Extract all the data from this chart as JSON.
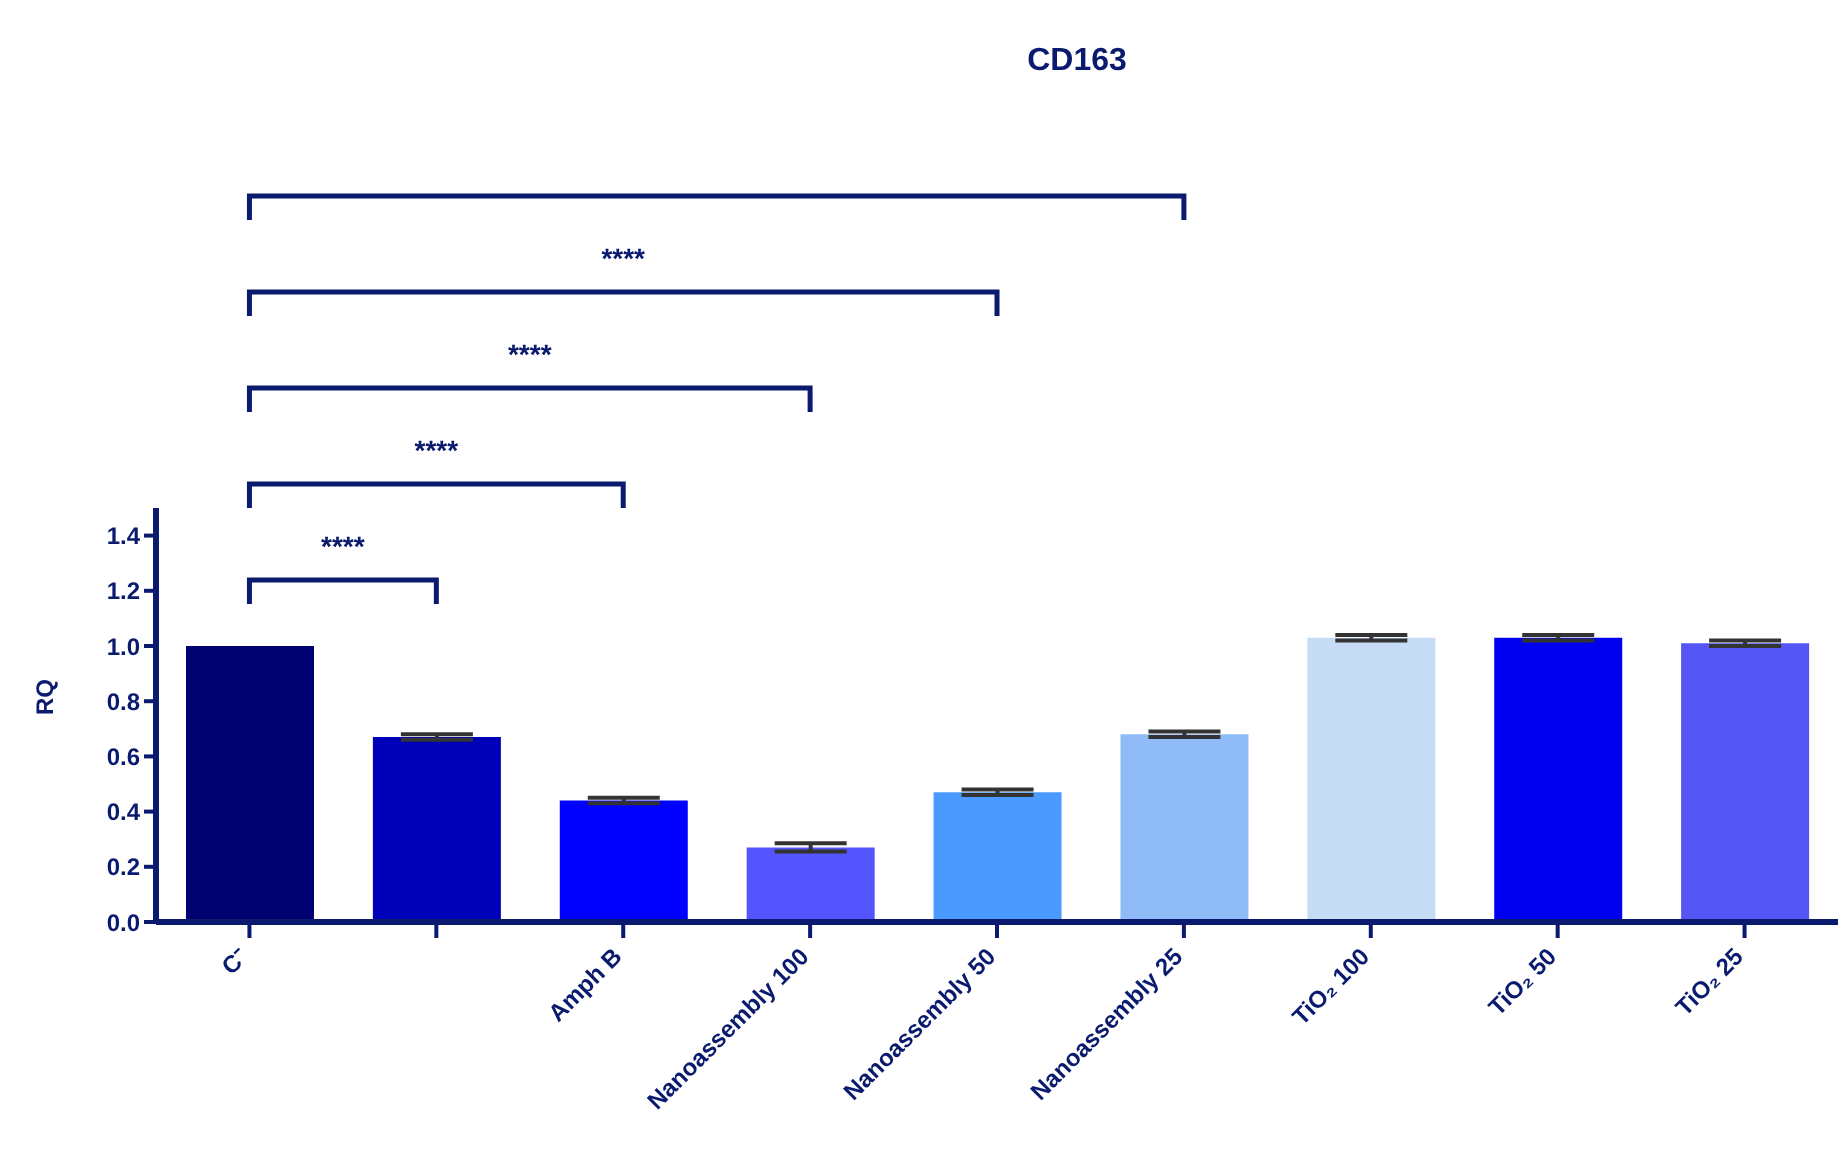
{
  "chart_data": {
    "type": "bar",
    "title": "CD163",
    "ylabel": "RQ",
    "categories": [
      "C⁻",
      null,
      "Amph B",
      "Nanoassembly 100",
      "Nanoassembly 50",
      "Nanoassembly 25",
      "TiO₂ 100",
      "TiO₂ 50",
      "TiO₂ 25"
    ],
    "values": [
      1.0,
      0.67,
      0.44,
      0.27,
      0.47,
      0.68,
      1.03,
      1.03,
      1.01
    ],
    "errors": [
      null,
      0.01,
      0.01,
      0.015,
      0.01,
      0.01,
      0.01,
      0.01,
      0.01
    ],
    "colors": [
      "#000070",
      "#0000b8",
      "#0000ff",
      "#5555ff",
      "#4a9aff",
      "#8fbcf8",
      "#c6dcf5",
      "#0000f0",
      "#5555f5"
    ],
    "ylim": [
      0,
      1.5
    ],
    "yticks": [
      {
        "value": 0,
        "label": "0.0"
      },
      0.2,
      0.4,
      0.6,
      0.8,
      {
        "value": 1,
        "label": "1.0"
      },
      1.2,
      1.4
    ],
    "annotations": [
      "****",
      "****",
      "****",
      "****"
    ]
  }
}
